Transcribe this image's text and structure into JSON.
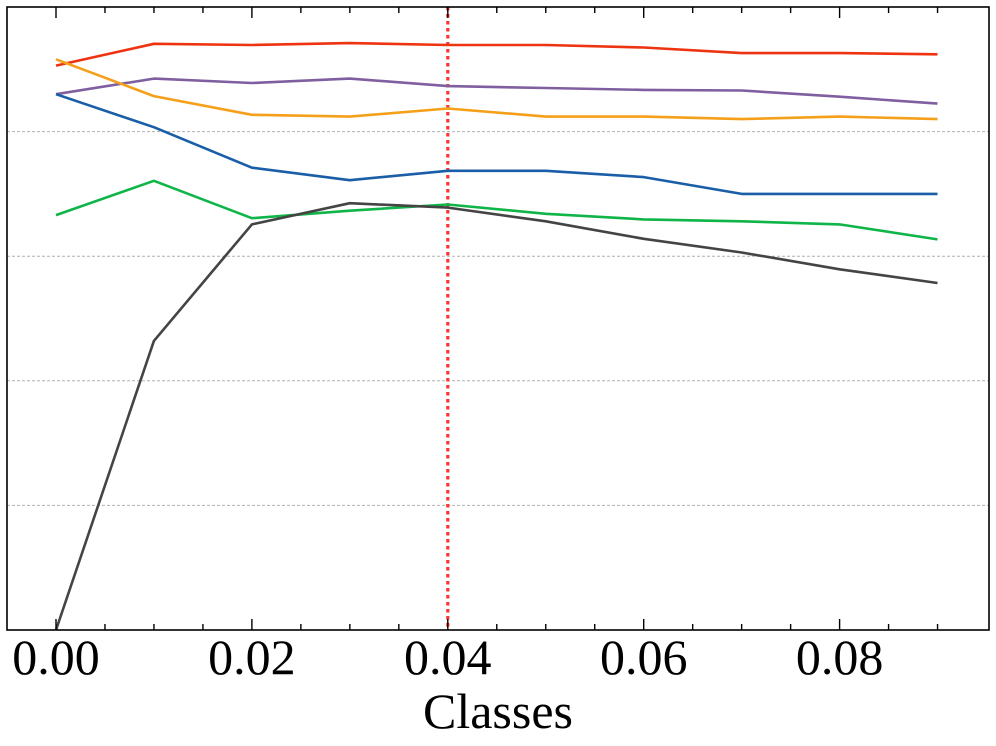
{
  "chart_data": {
    "type": "line",
    "title": "",
    "xlabel": "Classes",
    "ylabel": "",
    "xlim": [
      -0.005,
      0.0945
    ],
    "ylim": [
      0,
      1.0
    ],
    "x_ticks": [
      0.0,
      0.02,
      0.04,
      0.06,
      0.08
    ],
    "x_tick_labels": [
      "0.00",
      "0.02",
      "0.04",
      "0.06",
      "0.08"
    ],
    "x_minor_step": 0.005,
    "y_grid_lines": [
      0.2,
      0.4,
      0.6,
      0.8
    ],
    "grid": "horizontal-dashed",
    "legend": "none",
    "x": [
      0.0,
      0.01,
      0.02,
      0.03,
      0.04,
      0.05,
      0.06,
      0.07,
      0.08,
      0.09
    ],
    "reference_line": {
      "x": 0.04,
      "color": "#ff3333",
      "style": "dotted"
    },
    "series": [
      {
        "color": "#ee3311",
        "values": [
          0.906,
          0.941,
          0.939,
          0.942,
          0.939,
          0.939,
          0.935,
          0.926,
          0.926,
          0.924
        ]
      },
      {
        "color": "#7f5fa0",
        "values": [
          0.86,
          0.885,
          0.878,
          0.885,
          0.873,
          0.87,
          0.867,
          0.866,
          0.856,
          0.845
        ]
      },
      {
        "color": "#f5a01a",
        "values": [
          0.916,
          0.857,
          0.827,
          0.824,
          0.837,
          0.824,
          0.824,
          0.82,
          0.824,
          0.82
        ]
      },
      {
        "color": "#1a5ea8",
        "values": [
          0.86,
          0.807,
          0.742,
          0.722,
          0.737,
          0.737,
          0.727,
          0.7,
          0.7,
          0.7
        ]
      },
      {
        "color": "#0fb548",
        "values": [
          0.666,
          0.721,
          0.661,
          0.673,
          0.683,
          0.668,
          0.659,
          0.656,
          0.651,
          0.627
        ]
      },
      {
        "color": "#444444",
        "values": [
          0.0,
          0.464,
          0.651,
          0.685,
          0.678,
          0.656,
          0.628,
          0.606,
          0.579,
          0.557
        ]
      }
    ]
  }
}
